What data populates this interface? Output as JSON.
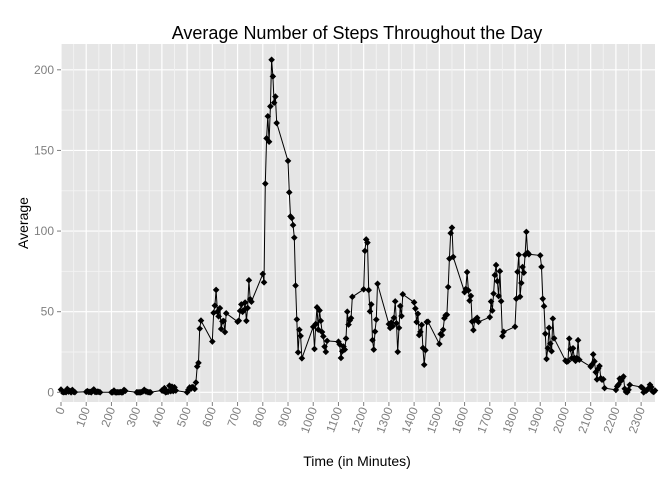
{
  "chart_data": {
    "type": "line",
    "title": "Average Number of Steps Throughout the Day",
    "xlabel": "Time (in Minutes)",
    "ylabel": "Average",
    "xlim": [
      0,
      2355
    ],
    "ylim": [
      -6,
      216
    ],
    "x_ticks": [
      "0",
      "100",
      "200",
      "300",
      "400",
      "500",
      "600",
      "700",
      "800",
      "900",
      "1000",
      "1100",
      "1200",
      "1300",
      "1400",
      "1500",
      "1600",
      "1700",
      "1800",
      "1900",
      "2000",
      "2100",
      "2200",
      "2300"
    ],
    "y_ticks": [
      "0",
      "50",
      "100",
      "150",
      "200"
    ],
    "colors": {
      "panel": "#e5e5e5",
      "grid_major": "#ffffff",
      "grid_minor": "#f2f2f2",
      "series": "#000000"
    },
    "marker": "diamond",
    "legend": "none",
    "series": [
      {
        "points": [
          [
            0,
            1.7
          ],
          [
            5,
            0.3
          ],
          [
            10,
            0.1
          ],
          [
            15,
            0.2
          ],
          [
            20,
            0.1
          ],
          [
            25,
            2.1
          ],
          [
            30,
            0.5
          ],
          [
            35,
            0.9
          ],
          [
            40,
            0
          ],
          [
            45,
            1.5
          ],
          [
            50,
            0.3
          ],
          [
            55,
            0.1
          ],
          [
            100,
            0.3
          ],
          [
            105,
            0.7
          ],
          [
            110,
            0.2
          ],
          [
            115,
            0.3
          ],
          [
            120,
            0
          ],
          [
            125,
            1.1
          ],
          [
            130,
            1.8
          ],
          [
            135,
            0.2
          ],
          [
            140,
            0.2
          ],
          [
            145,
            0.4
          ],
          [
            150,
            0.3
          ],
          [
            155,
            0
          ],
          [
            200,
            0
          ],
          [
            205,
            0
          ],
          [
            210,
            1.1
          ],
          [
            215,
            0
          ],
          [
            220,
            0
          ],
          [
            225,
            0.1
          ],
          [
            230,
            0
          ],
          [
            235,
            0.2
          ],
          [
            240,
            0
          ],
          [
            245,
            0
          ],
          [
            250,
            1.5
          ],
          [
            255,
            0.9
          ],
          [
            300,
            0
          ],
          [
            305,
            0
          ],
          [
            310,
            0
          ],
          [
            315,
            0
          ],
          [
            320,
            0.2
          ],
          [
            325,
            0.6
          ],
          [
            330,
            1.6
          ],
          [
            335,
            0.6
          ],
          [
            340,
            0.5
          ],
          [
            345,
            0.1
          ],
          [
            350,
            0
          ],
          [
            355,
            0
          ],
          [
            400,
            1.2
          ],
          [
            405,
            0.9
          ],
          [
            410,
            2.6
          ],
          [
            415,
            0
          ],
          [
            420,
            0.3
          ],
          [
            425,
            0.4
          ],
          [
            430,
            4.1
          ],
          [
            435,
            0.7
          ],
          [
            440,
            3.5
          ],
          [
            445,
            0.8
          ],
          [
            450,
            3.1
          ],
          [
            455,
            1.1
          ],
          [
            500,
            0
          ],
          [
            505,
            1.6
          ],
          [
            510,
            3
          ],
          [
            515,
            2.2
          ],
          [
            520,
            3.3
          ],
          [
            525,
            3
          ],
          [
            530,
            2.1
          ],
          [
            535,
            6.1
          ],
          [
            540,
            16
          ],
          [
            545,
            18.3
          ],
          [
            550,
            39.5
          ],
          [
            555,
            44.5
          ],
          [
            600,
            31.5
          ],
          [
            605,
            49.3
          ],
          [
            610,
            53.8
          ],
          [
            615,
            63.5
          ],
          [
            620,
            50
          ],
          [
            625,
            47.1
          ],
          [
            630,
            52.2
          ],
          [
            635,
            39.3
          ],
          [
            640,
            44
          ],
          [
            645,
            44.2
          ],
          [
            650,
            37.4
          ],
          [
            655,
            49
          ],
          [
            700,
            43.8
          ],
          [
            705,
            44.4
          ],
          [
            710,
            50.5
          ],
          [
            715,
            54.5
          ],
          [
            720,
            49.9
          ],
          [
            725,
            50.9
          ],
          [
            730,
            55.7
          ],
          [
            735,
            44.3
          ],
          [
            740,
            52.3
          ],
          [
            745,
            69.5
          ],
          [
            750,
            57.8
          ],
          [
            755,
            56.2
          ],
          [
            800,
            73.4
          ],
          [
            805,
            68.2
          ],
          [
            810,
            129.4
          ],
          [
            815,
            157.5
          ],
          [
            820,
            171.2
          ],
          [
            825,
            155.4
          ],
          [
            830,
            177.3
          ],
          [
            835,
            206.2
          ],
          [
            840,
            195.9
          ],
          [
            845,
            179.6
          ],
          [
            850,
            183.4
          ],
          [
            855,
            167
          ],
          [
            900,
            143.5
          ],
          [
            905,
            124
          ],
          [
            910,
            109.1
          ],
          [
            915,
            108.1
          ],
          [
            920,
            103.7
          ],
          [
            925,
            95.9
          ],
          [
            930,
            66.2
          ],
          [
            935,
            45.2
          ],
          [
            940,
            24.8
          ],
          [
            945,
            38.8
          ],
          [
            950,
            34.98
          ],
          [
            955,
            21.1
          ],
          [
            1000,
            40.6
          ],
          [
            1005,
            26.9
          ],
          [
            1010,
            42.4
          ],
          [
            1015,
            52.7
          ],
          [
            1020,
            38.9
          ],
          [
            1025,
            50.8
          ],
          [
            1030,
            44.3
          ],
          [
            1035,
            37.4
          ],
          [
            1040,
            34.7
          ],
          [
            1045,
            28.3
          ],
          [
            1050,
            25.1
          ],
          [
            1055,
            31.9
          ],
          [
            1100,
            31.4
          ],
          [
            1105,
            29.7
          ],
          [
            1110,
            21.3
          ],
          [
            1115,
            25.5
          ],
          [
            1120,
            28.4
          ],
          [
            1125,
            26.5
          ],
          [
            1130,
            33.4
          ],
          [
            1135,
            49.98
          ],
          [
            1140,
            42
          ],
          [
            1145,
            44.6
          ],
          [
            1150,
            46
          ],
          [
            1155,
            59.2
          ],
          [
            1200,
            63.9
          ],
          [
            1205,
            87.7
          ],
          [
            1210,
            94.8
          ],
          [
            1215,
            92.8
          ],
          [
            1220,
            63.4
          ],
          [
            1225,
            50.2
          ],
          [
            1230,
            54.5
          ],
          [
            1235,
            32.4
          ],
          [
            1240,
            26.5
          ],
          [
            1245,
            37.7
          ],
          [
            1250,
            45.1
          ],
          [
            1255,
            67.3
          ],
          [
            1300,
            42.3
          ],
          [
            1305,
            39.9
          ],
          [
            1310,
            43.3
          ],
          [
            1315,
            40.98
          ],
          [
            1320,
            46.2
          ],
          [
            1325,
            56.4
          ],
          [
            1330,
            42.8
          ],
          [
            1335,
            25.1
          ],
          [
            1340,
            39.97
          ],
          [
            1345,
            53.5
          ],
          [
            1350,
            47.3
          ],
          [
            1355,
            60.8
          ],
          [
            1400,
            55.8
          ],
          [
            1405,
            51.96
          ],
          [
            1410,
            43.6
          ],
          [
            1415,
            48.7
          ],
          [
            1420,
            35.5
          ],
          [
            1425,
            37.5
          ],
          [
            1430,
            41.8
          ],
          [
            1435,
            27.5
          ],
          [
            1440,
            17.1
          ],
          [
            1445,
            26.1
          ],
          [
            1450,
            43.6
          ],
          [
            1455,
            43.8
          ],
          [
            1500,
            30
          ],
          [
            1505,
            36.1
          ],
          [
            1510,
            35.5
          ],
          [
            1515,
            38.8
          ],
          [
            1520,
            45.96
          ],
          [
            1525,
            47.8
          ],
          [
            1530,
            48.1
          ],
          [
            1535,
            65.3
          ],
          [
            1540,
            82.9
          ],
          [
            1545,
            98.7
          ],
          [
            1550,
            102.1
          ],
          [
            1555,
            83.96
          ],
          [
            1600,
            62.1
          ],
          [
            1605,
            64.1
          ],
          [
            1610,
            74.5
          ],
          [
            1615,
            63.2
          ],
          [
            1620,
            56.9
          ],
          [
            1625,
            59.8
          ],
          [
            1630,
            43.9
          ],
          [
            1635,
            38.6
          ],
          [
            1640,
            44.7
          ],
          [
            1645,
            45.5
          ],
          [
            1650,
            46.2
          ],
          [
            1655,
            43.7
          ],
          [
            1700,
            46.6
          ],
          [
            1705,
            56.3
          ],
          [
            1710,
            50.7
          ],
          [
            1715,
            61.2
          ],
          [
            1720,
            72.7
          ],
          [
            1725,
            78.9
          ],
          [
            1730,
            68.9
          ],
          [
            1735,
            59.7
          ],
          [
            1740,
            75.1
          ],
          [
            1745,
            56.5
          ],
          [
            1750,
            34.8
          ],
          [
            1755,
            37.5
          ],
          [
            1800,
            40.7
          ],
          [
            1805,
            58
          ],
          [
            1810,
            74.7
          ],
          [
            1815,
            85.3
          ],
          [
            1820,
            59.3
          ],
          [
            1825,
            67.8
          ],
          [
            1830,
            77.7
          ],
          [
            1835,
            74.2
          ],
          [
            1840,
            85.3
          ],
          [
            1845,
            99.5
          ],
          [
            1850,
            86.6
          ],
          [
            1855,
            85.6
          ],
          [
            1900,
            84.9
          ],
          [
            1905,
            77.8
          ],
          [
            1910,
            58
          ],
          [
            1915,
            53.4
          ],
          [
            1920,
            36.3
          ],
          [
            1925,
            20.7
          ],
          [
            1930,
            27.4
          ],
          [
            1935,
            40
          ],
          [
            1940,
            30.2
          ],
          [
            1945,
            25.5
          ],
          [
            1950,
            45.7
          ],
          [
            1955,
            33.5
          ],
          [
            2000,
            19.6
          ],
          [
            2005,
            19
          ],
          [
            2010,
            19.3
          ],
          [
            2015,
            33.3
          ],
          [
            2020,
            26.8
          ],
          [
            2025,
            21.2
          ],
          [
            2030,
            27.3
          ],
          [
            2035,
            21.3
          ],
          [
            2040,
            19.5
          ],
          [
            2045,
            21.3
          ],
          [
            2050,
            32.3
          ],
          [
            2055,
            20.2
          ],
          [
            2100,
            15.9
          ],
          [
            2105,
            17.2
          ],
          [
            2110,
            23.5
          ],
          [
            2115,
            19.2
          ],
          [
            2120,
            12.5
          ],
          [
            2125,
            8
          ],
          [
            2130,
            14.7
          ],
          [
            2135,
            16.3
          ],
          [
            2140,
            8.7
          ],
          [
            2145,
            7.8
          ],
          [
            2150,
            8.1
          ],
          [
            2155,
            2.6
          ],
          [
            2200,
            1.5
          ],
          [
            2205,
            3.7
          ],
          [
            2210,
            4.8
          ],
          [
            2215,
            8.5
          ],
          [
            2220,
            7.1
          ],
          [
            2225,
            8.7
          ],
          [
            2230,
            9.8
          ],
          [
            2235,
            2.2
          ],
          [
            2240,
            0.3
          ],
          [
            2245,
            0.1
          ],
          [
            2250,
            1.6
          ],
          [
            2255,
            4.6
          ],
          [
            2300,
            3.3
          ],
          [
            2305,
            2.8
          ],
          [
            2310,
            0
          ],
          [
            2315,
            0.8
          ],
          [
            2320,
            1
          ],
          [
            2325,
            1.6
          ],
          [
            2330,
            2.6
          ],
          [
            2335,
            4.7
          ],
          [
            2340,
            3.3
          ],
          [
            2345,
            0.6
          ],
          [
            2350,
            0.2
          ],
          [
            2355,
            1.1
          ]
        ]
      }
    ]
  }
}
